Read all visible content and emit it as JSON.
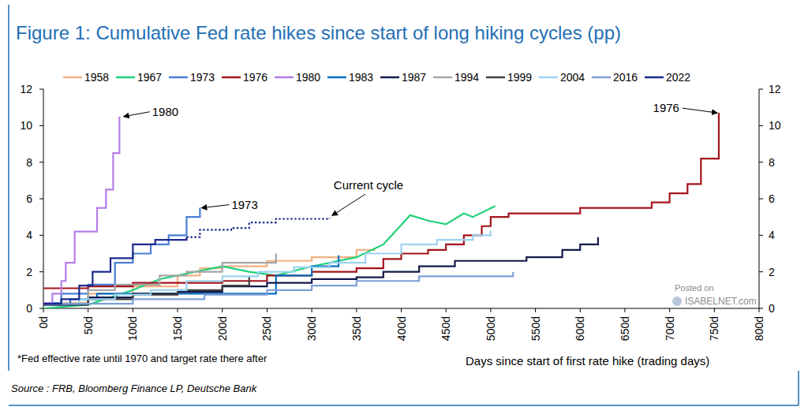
{
  "chart_data": {
    "type": "line",
    "title": "Figure 1: Cumulative Fed rate hikes since start of long hiking cycles (pp)",
    "x_label": "Days since start of first rate hike (trading days)",
    "footnote": "*Fed effective rate until 1970 and target rate there after",
    "source": "Source : FRB, Bloomberg Finance LP, Deutsche Bank",
    "watermark": [
      "Posted on",
      "ISABELNET.com"
    ],
    "xlim": [
      0,
      800
    ],
    "xticks": [
      {
        "value": 0,
        "label": "0d"
      },
      {
        "value": 50,
        "label": "50d"
      },
      {
        "value": 100,
        "label": "100d"
      },
      {
        "value": 150,
        "label": "150d"
      },
      {
        "value": 200,
        "label": "200d"
      },
      {
        "value": 250,
        "label": "250d"
      },
      {
        "value": 300,
        "label": "300d"
      },
      {
        "value": 350,
        "label": "350d"
      },
      {
        "value": 400,
        "label": "400d"
      },
      {
        "value": 450,
        "label": "450d"
      },
      {
        "value": 500,
        "label": "500d"
      },
      {
        "value": 550,
        "label": "550d"
      },
      {
        "value": 600,
        "label": "600d"
      },
      {
        "value": 650,
        "label": "650d"
      },
      {
        "value": 700,
        "label": "700d"
      },
      {
        "value": 750,
        "label": "750d"
      },
      {
        "value": 800,
        "label": "800d"
      }
    ],
    "ylim": [
      0,
      12
    ],
    "yticks": [
      0,
      2,
      4,
      6,
      8,
      10,
      12
    ],
    "y2lim": [
      0,
      12
    ],
    "y2ticks": [
      0,
      2,
      4,
      6,
      8,
      10,
      12
    ],
    "grid": false,
    "legend": "top",
    "annotations": [
      {
        "text": "1980",
        "x": 88,
        "y": 10.5
      },
      {
        "text": "1973",
        "x": 175,
        "y": 5.5
      },
      {
        "text": "1976",
        "x": 755,
        "y": 10.7
      }
    ],
    "series": [
      {
        "name": "1958",
        "color": "#f4b183",
        "line_style": "step",
        "x": [
          0,
          50,
          100,
          150,
          175,
          200,
          250,
          300,
          350,
          370
        ],
        "values": [
          0.3,
          0.8,
          1.2,
          1.8,
          2.2,
          2.3,
          2.6,
          2.8,
          3.2,
          3.3
        ]
      },
      {
        "name": "1967",
        "color": "#1fd17a",
        "line_style": "solid",
        "x": [
          0,
          50,
          100,
          130,
          170,
          200,
          230,
          260,
          300,
          350,
          380,
          410,
          430,
          450,
          470,
          480,
          505
        ],
        "values": [
          0,
          0.2,
          1.0,
          1.6,
          2.0,
          2.3,
          2.0,
          1.8,
          2.3,
          2.8,
          3.5,
          5.1,
          4.8,
          4.6,
          5.2,
          5.0,
          5.6
        ]
      },
      {
        "name": "1973",
        "color": "#4a7fd4",
        "line_style": "step",
        "x": [
          0,
          20,
          50,
          80,
          100,
          120,
          140,
          160,
          175
        ],
        "values": [
          0.3,
          0.8,
          1.3,
          2.5,
          3.0,
          3.5,
          4.0,
          5.0,
          5.5
        ]
      },
      {
        "name": "1976",
        "color": "#a3141c",
        "line_style": "step",
        "x": [
          0,
          50,
          100,
          200,
          250,
          300,
          350,
          380,
          400,
          430,
          450,
          470,
          490,
          500,
          520,
          600,
          680,
          700,
          720,
          735,
          755
        ],
        "values": [
          1.1,
          1.2,
          1.4,
          1.5,
          1.8,
          2.0,
          2.2,
          2.7,
          3.0,
          3.2,
          3.5,
          4.0,
          4.5,
          5.0,
          5.2,
          5.5,
          5.8,
          6.3,
          6.8,
          8.2,
          10.7
        ]
      },
      {
        "name": "1980",
        "color": "#b57ee8",
        "line_style": "step",
        "x": [
          0,
          10,
          20,
          25,
          35,
          60,
          70,
          78,
          85
        ],
        "values": [
          0.3,
          0.8,
          1.5,
          2.5,
          4.2,
          5.5,
          6.5,
          8.5,
          10.5
        ]
      },
      {
        "name": "1983",
        "color": "#0a6fbf",
        "line_style": "step",
        "x": [
          0,
          30,
          60,
          260,
          300,
          330
        ],
        "values": [
          0.2,
          0.5,
          0.8,
          1.8,
          2.3,
          2.9
        ]
      },
      {
        "name": "1987",
        "color": "#101a4a",
        "line_style": "step",
        "x": [
          0,
          50,
          100,
          150,
          200,
          250,
          300,
          350,
          380,
          420,
          460,
          540,
          580,
          600,
          620
        ],
        "values": [
          0.2,
          0.6,
          0.8,
          0.9,
          1.2,
          1.4,
          1.6,
          1.7,
          2.0,
          2.3,
          2.6,
          2.8,
          3.2,
          3.5,
          3.9
        ]
      },
      {
        "name": "1994",
        "color": "#a6a6a6",
        "line_style": "step",
        "x": [
          0,
          50,
          80,
          130,
          160,
          200,
          260
        ],
        "values": [
          0.25,
          1.0,
          1.3,
          1.8,
          2.0,
          2.5,
          3.0
        ]
      },
      {
        "name": "1999",
        "color": "#3f3f3f",
        "line_style": "step",
        "x": [
          0,
          50,
          100,
          150,
          200,
          230
        ],
        "values": [
          0.25,
          0.5,
          0.75,
          1.0,
          1.25,
          1.75
        ]
      },
      {
        "name": "2004",
        "color": "#9dd3f0",
        "line_style": "step",
        "x": [
          0,
          40,
          80,
          120,
          160,
          200,
          240,
          280,
          320,
          360,
          400,
          440,
          480,
          500
        ],
        "values": [
          0.25,
          0.5,
          0.75,
          1.0,
          1.5,
          1.75,
          2.0,
          2.25,
          2.5,
          3.0,
          3.5,
          3.75,
          4.0,
          4.25
        ]
      },
      {
        "name": "2016",
        "color": "#7f9fd8",
        "line_style": "step",
        "x": [
          0,
          100,
          180,
          250,
          300,
          350,
          420,
          525
        ],
        "values": [
          0.25,
          0.5,
          0.75,
          1.0,
          1.25,
          1.5,
          1.75,
          2.0
        ]
      },
      {
        "name": "2022",
        "color": "#1c2a8c",
        "line_style": "step",
        "x": [
          0,
          20,
          40,
          55,
          75,
          100,
          125,
          160
        ],
        "values": [
          0.25,
          0.5,
          1.25,
          2.0,
          2.75,
          3.5,
          3.75,
          3.9
        ]
      },
      {
        "name": "Current cycle",
        "color": "#1c2a8c",
        "line_style": "dotted",
        "x": [
          160,
          175,
          210,
          230,
          260,
          320
        ],
        "values": [
          3.9,
          4.3,
          4.4,
          4.7,
          4.9,
          4.95
        ]
      }
    ]
  }
}
